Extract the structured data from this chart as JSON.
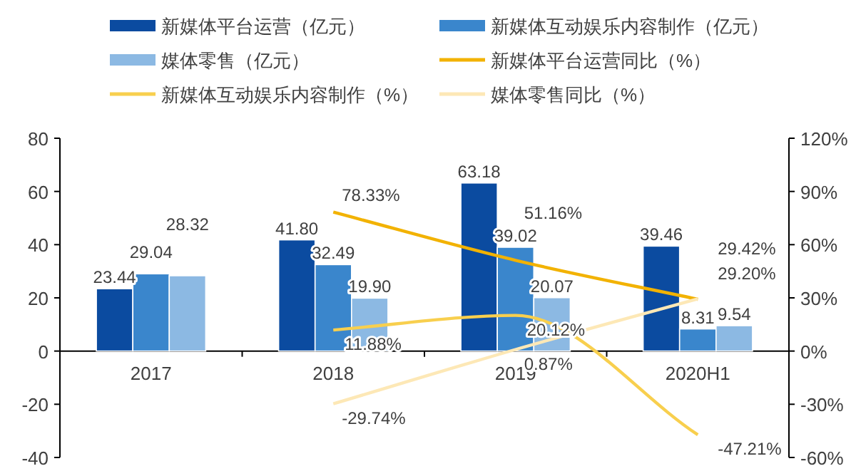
{
  "chart_data": {
    "type": "bar",
    "categories": [
      "2017",
      "2018",
      "2019",
      "2020H1"
    ],
    "series": [
      {
        "name": "新媒体平台运营（亿元）",
        "color": "#0b4ba0",
        "values": [
          23.44,
          41.8,
          63.18,
          39.46
        ],
        "value_labels": [
          "23.44",
          "41.80",
          "63.18",
          "39.46"
        ]
      },
      {
        "name": "新媒体互动娱乐内容制作（亿元）",
        "color": "#3a86cc",
        "values": [
          29.04,
          32.49,
          39.02,
          8.31
        ],
        "value_labels": [
          "29.04",
          "32.49",
          "39.02",
          "8.31"
        ]
      },
      {
        "name": "媒体零售（亿元）",
        "color": "#8cb9e3",
        "values": [
          28.32,
          19.9,
          20.07,
          9.54
        ],
        "value_labels": [
          "28.32",
          "19.90",
          "20.07",
          "9.54"
        ]
      },
      {
        "name": "新媒体平台运营同比（%）",
        "type": "line",
        "axis": "y2",
        "color": "#f2b200",
        "values": [
          null,
          78.33,
          51.16,
          29.2
        ],
        "value_labels": [
          null,
          "78.33%",
          "51.16%",
          "29.20%"
        ]
      },
      {
        "name": "新媒体互动娱乐内容制作（%）",
        "type": "line",
        "axis": "y2",
        "color": "#f8cf4e",
        "values": [
          null,
          11.88,
          20.12,
          -47.21
        ],
        "value_labels": [
          null,
          "11.88%",
          "20.12%",
          "-47.21%"
        ]
      },
      {
        "name": "媒体零售同比（%）",
        "type": "line",
        "axis": "y2",
        "color": "#fde8b6",
        "values": [
          null,
          -29.74,
          0.87,
          29.42
        ],
        "value_labels": [
          null,
          "-29.74%",
          "0.87%",
          "29.42%"
        ]
      }
    ],
    "ylim": [
      -40,
      80
    ],
    "yticks": [
      -40,
      -20,
      0,
      20,
      40,
      60,
      80
    ],
    "y2lim": [
      -60,
      120
    ],
    "y2ticks": [
      {
        "value": -60,
        "label": "-60%"
      },
      {
        "value": -30,
        "label": "-30%"
      },
      {
        "value": 0,
        "label": "0%"
      },
      {
        "value": 30,
        "label": "30%"
      },
      {
        "value": 60,
        "label": "60%"
      },
      {
        "value": 90,
        "label": "90%"
      },
      {
        "value": 120,
        "label": "120%"
      }
    ],
    "legend": "top",
    "grid": false
  }
}
